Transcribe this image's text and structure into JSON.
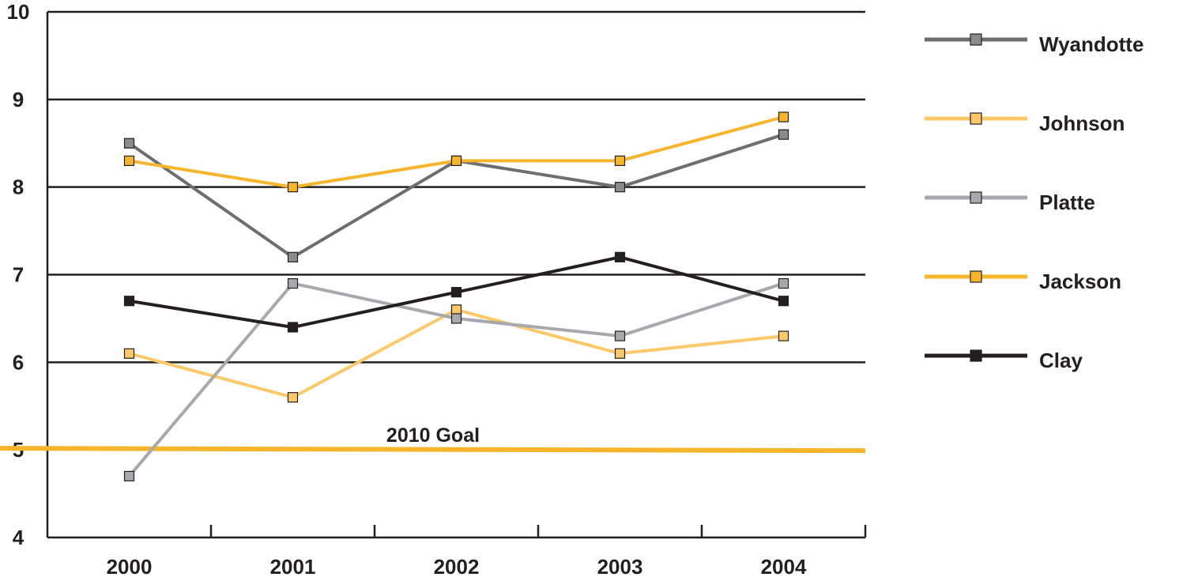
{
  "chart_data": {
    "type": "line",
    "title": "",
    "xlabel": "",
    "ylabel": "",
    "x": [
      "2000",
      "2001",
      "2002",
      "2003",
      "2004"
    ],
    "y_ticks": [
      "4",
      "5",
      "6",
      "7",
      "8",
      "9",
      "10"
    ],
    "ylim": [
      4,
      10
    ],
    "grid": true,
    "legend_position": "right",
    "series": [
      {
        "name": "Wyandotte",
        "color": "#6d6e70",
        "marker_fill": "#8a8b8d",
        "values": [
          8.5,
          7.2,
          8.3,
          8.0,
          8.6
        ]
      },
      {
        "name": "Johnson",
        "color": "#fcc96a",
        "marker_fill": "#fcc96a",
        "values": [
          6.1,
          5.6,
          6.6,
          6.1,
          6.3
        ]
      },
      {
        "name": "Platte",
        "color": "#a7a9ac",
        "marker_fill": "#a7a9ac",
        "values": [
          4.7,
          6.9,
          6.5,
          6.3,
          6.9
        ]
      },
      {
        "name": "Jackson",
        "color": "#f7b52c",
        "marker_fill": "#f7b52c",
        "values": [
          8.3,
          8.0,
          8.3,
          8.3,
          8.8
        ]
      },
      {
        "name": "Clay",
        "color": "#231f20",
        "marker_fill": "#231f20",
        "values": [
          6.7,
          6.4,
          6.8,
          7.2,
          6.7
        ]
      }
    ],
    "reference_line": {
      "label": "2010 Goal",
      "value": 5.0,
      "color": "#f7b52c"
    }
  }
}
